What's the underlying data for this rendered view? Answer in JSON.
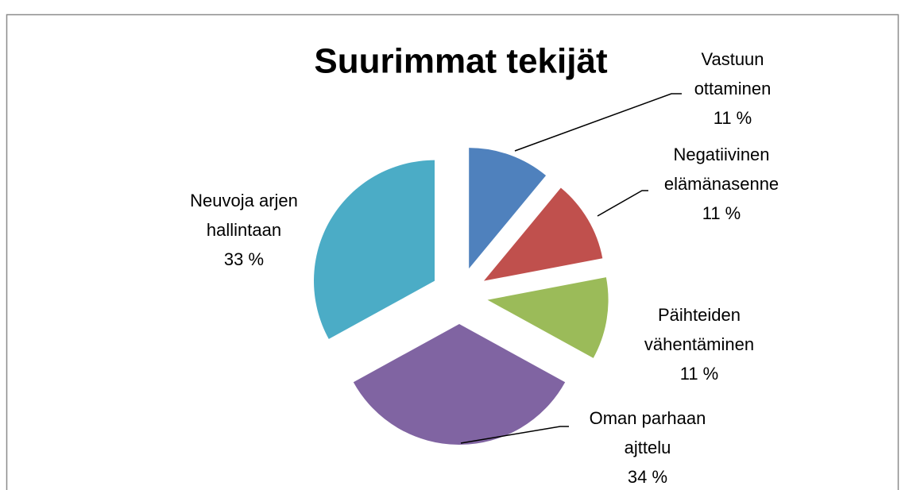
{
  "chart_data": {
    "type": "pie",
    "title": "Suurimmat tekijät",
    "categories": [
      "Vastuun ottaminen",
      "Negatiivinen elämänasenne",
      "Päihteiden vähentäminen",
      "Oman parhaan ajttelu",
      "Neuvoja arjen hallintaan"
    ],
    "values": [
      11,
      11,
      11,
      34,
      33
    ],
    "value_labels": [
      "11 %",
      "11 %",
      "11 %",
      "34 %",
      "33 %"
    ],
    "colors": [
      "#4f81bd",
      "#c0504d",
      "#9bbb59",
      "#8064a2",
      "#4bacc6"
    ]
  }
}
